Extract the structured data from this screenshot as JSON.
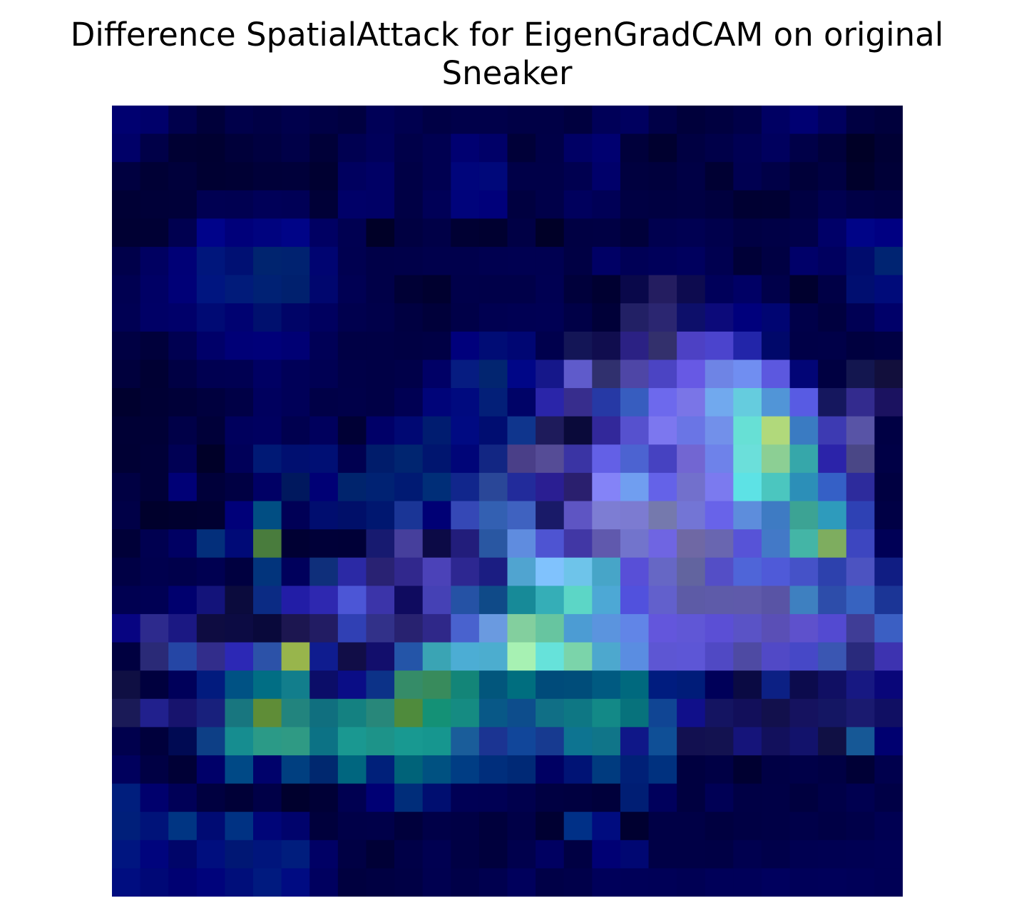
{
  "chart_data": {
    "type": "heatmap",
    "title": "Difference SpatialAttack for EigenGradCAM on original",
    "subtitle": "Sneaker",
    "xlabel": "",
    "ylabel": "",
    "axes_visible": false,
    "grid": false,
    "legend": "none",
    "rows": 28,
    "cols": 28,
    "cells": [
      [
        "#000070",
        "#00006a",
        "#00004c",
        "#00003a",
        "#00004a",
        "#000045",
        "#00004c",
        "#000045",
        "#000040",
        "#000057",
        "#00004f",
        "#000045",
        "#00004a",
        "#00004a",
        "#000046",
        "#000046",
        "#00003f",
        "#000058",
        "#00005f",
        "#000047",
        "#00003b",
        "#000040",
        "#000048",
        "#000063",
        "#000072",
        "#00005e",
        "#000042",
        "#00003c"
      ],
      [
        "#000068",
        "#000048",
        "#000033",
        "#000031",
        "#00003a",
        "#000040",
        "#000048",
        "#000038",
        "#000051",
        "#00005a",
        "#000049",
        "#000051",
        "#000071",
        "#000068",
        "#000038",
        "#000047",
        "#000065",
        "#000070",
        "#00003b",
        "#00002f",
        "#000042",
        "#000049",
        "#000053",
        "#00005e",
        "#000048",
        "#00003b",
        "#000026",
        "#000034"
      ],
      [
        "#000040",
        "#000035",
        "#00003b",
        "#000032",
        "#000034",
        "#000039",
        "#00003a",
        "#000031",
        "#00005f",
        "#000065",
        "#000046",
        "#000051",
        "#00057b",
        "#00087a",
        "#000048",
        "#000048",
        "#000050",
        "#00006a",
        "#00003f",
        "#00003d",
        "#000045",
        "#000033",
        "#000051",
        "#000047",
        "#000039",
        "#000042",
        "#00002b",
        "#000037"
      ],
      [
        "#000035",
        "#000038",
        "#000039",
        "#000052",
        "#000051",
        "#000058",
        "#000056",
        "#000037",
        "#000068",
        "#000066",
        "#000045",
        "#000057",
        "#00037b",
        "#00007a",
        "#000040",
        "#000049",
        "#00005d",
        "#000056",
        "#000043",
        "#000041",
        "#000043",
        "#00003e",
        "#000032",
        "#000033",
        "#000042",
        "#000050",
        "#000046",
        "#000043"
      ],
      [
        "#000033",
        "#000034",
        "#000050",
        "#00038a",
        "#00007a",
        "#00037f",
        "#000487",
        "#000063",
        "#000051",
        "#000027",
        "#000041",
        "#000047",
        "#000033",
        "#000030",
        "#000045",
        "#000027",
        "#000043",
        "#000044",
        "#00003a",
        "#00004f",
        "#000052",
        "#00004c",
        "#000043",
        "#000046",
        "#000049",
        "#000068",
        "#000487",
        "#000082"
      ],
      [
        "#00004a",
        "#000061",
        "#000076",
        "#00167c",
        "#001073",
        "#00246f",
        "#002270",
        "#000471",
        "#000050",
        "#000048",
        "#000049",
        "#00004c",
        "#00004c",
        "#000050",
        "#000051",
        "#000051",
        "#000044",
        "#000065",
        "#000056",
        "#00005a",
        "#00005e",
        "#000050",
        "#000037",
        "#000043",
        "#000069",
        "#00005f",
        "#000c6d",
        "#002472"
      ],
      [
        "#000051",
        "#000065",
        "#000077",
        "#001580",
        "#011b7a",
        "#002174",
        "#00206e",
        "#00066e",
        "#000053",
        "#000048",
        "#000035",
        "#00002f",
        "#00004a",
        "#000049",
        "#000049",
        "#000052",
        "#00003b",
        "#000031",
        "#09084a",
        "#241d60",
        "#0d0b4f",
        "#00005a",
        "#000065",
        "#00004a",
        "#00002e",
        "#000046",
        "#000e70",
        "#000b7a"
      ],
      [
        "#000053",
        "#000066",
        "#00006a",
        "#000a74",
        "#000271",
        "#00106e",
        "#000467",
        "#00005f",
        "#00004e",
        "#00004a",
        "#000041",
        "#00003a",
        "#000048",
        "#000051",
        "#000053",
        "#000054",
        "#000047",
        "#000038",
        "#222065",
        "#2b2671",
        "#0d0f6a",
        "#0c0a7a",
        "#00007c",
        "#000572",
        "#000049",
        "#00003f",
        "#000054",
        "#000069"
      ],
      [
        "#000043",
        "#00003b",
        "#000051",
        "#000069",
        "#000077",
        "#000079",
        "#000074",
        "#000056",
        "#000045",
        "#000045",
        "#000043",
        "#000045",
        "#00007c",
        "#000c75",
        "#000673",
        "#00004d",
        "#131556",
        "#100d4e",
        "#2b2184",
        "#33306c",
        "#4d41c4",
        "#4b44cd",
        "#2225a9",
        "#00086a",
        "#000047",
        "#000048",
        "#00003f",
        "#000043"
      ],
      [
        "#00003d",
        "#000033",
        "#000044",
        "#000051",
        "#000052",
        "#000063",
        "#000058",
        "#000053",
        "#000048",
        "#000046",
        "#000049",
        "#000066",
        "#061c81",
        "#022570",
        "#000687",
        "#15178a",
        "#5f5bcb",
        "#30306e",
        "#4e46a6",
        "#4b44c3",
        "#6759e4",
        "#6e84e5",
        "#708ef1",
        "#5c58df",
        "#020576",
        "#000041",
        "#13164f",
        "#120f3c"
      ],
      [
        "#00002e",
        "#000034",
        "#000038",
        "#00003e",
        "#000046",
        "#00005e",
        "#000058",
        "#000047",
        "#000049",
        "#000046",
        "#000053",
        "#000479",
        "#000a7f",
        "#031f78",
        "#000367",
        "#2a25a9",
        "#372d8d",
        "#2639a5",
        "#375dbf",
        "#6d69ed",
        "#7a75e7",
        "#71a9ee",
        "#65ccde",
        "#5195d7",
        "#585be3",
        "#15175e",
        "#332b8e",
        "#1b1260"
      ],
      [
        "#000035",
        "#000036",
        "#000048",
        "#000039",
        "#00005d",
        "#000060",
        "#00004f",
        "#00005d",
        "#000035",
        "#000068",
        "#000873",
        "#001c70",
        "#000a82",
        "#000d71",
        "#0f358d",
        "#1e1b5b",
        "#0a0a3a",
        "#32289a",
        "#5651ce",
        "#7c77ef",
        "#6a75e5",
        "#7290ea",
        "#67e0d5",
        "#b1d97b",
        "#3a7bc2",
        "#3d3ab2",
        "#5854a6",
        "#000044"
      ],
      [
        "#000034",
        "#000038",
        "#000054",
        "#000028",
        "#000059",
        "#001975",
        "#000f70",
        "#000f74",
        "#000050",
        "#001c6b",
        "#002570",
        "#00156f",
        "#000578",
        "#122683",
        "#4a3f88",
        "#554c96",
        "#3a34a4",
        "#6360e6",
        "#4c63d1",
        "#4642c1",
        "#7266d2",
        "#6e82ea",
        "#6bdfda",
        "#8ccf94",
        "#36a7aa",
        "#2b23a9",
        "#4a4786",
        "#000046"
      ],
      [
        "#000043",
        "#000038",
        "#000076",
        "#00003a",
        "#000043",
        "#000065",
        "#00185e",
        "#000075",
        "#00246d",
        "#002273",
        "#001a73",
        "#002e78",
        "#11268c",
        "#2a4798",
        "#222b9b",
        "#2a1e92",
        "#2a1f6e",
        "#8483f7",
        "#709ef0",
        "#6462e8",
        "#7270cc",
        "#7b7aef",
        "#5de2e5",
        "#4bc6bf",
        "#2c8fb8",
        "#3560c6",
        "#2d2b9c",
        "#000041"
      ],
      [
        "#000047",
        "#00002c",
        "#00002f",
        "#000031",
        "#000079",
        "#014e83",
        "#000056",
        "#000d6f",
        "#000f69",
        "#001770",
        "#1a3596",
        "#000075",
        "#3548b6",
        "#3360b2",
        "#3f62c0",
        "#191a68",
        "#5e55c3",
        "#7d7dd3",
        "#7c7bd1",
        "#7579ad",
        "#7375d5",
        "#6863e9",
        "#5d8ddc",
        "#3e7bc3",
        "#3ca394",
        "#2e9bbc",
        "#2e41b4",
        "#000045"
      ],
      [
        "#000038",
        "#000050",
        "#000063",
        "#032f7b",
        "#000a77",
        "#497c3d",
        "#000033",
        "#000038",
        "#000037",
        "#171a70",
        "#463f9c",
        "#0c0a46",
        "#221d7b",
        "#2957a2",
        "#5f8cdf",
        "#4e54d2",
        "#4137a5",
        "#6059ad",
        "#7274cc",
        "#6f65e2",
        "#6f68a4",
        "#6966b0",
        "#5753d7",
        "#4379c7",
        "#44b5a6",
        "#7ead5f",
        "#3d46c0",
        "#000056"
      ],
      [
        "#000045",
        "#00004e",
        "#00004b",
        "#000051",
        "#000040",
        "#02347c",
        "#00005c",
        "#0f2f7b",
        "#2b29a5",
        "#292273",
        "#31288d",
        "#4b42b8",
        "#2d2791",
        "#1b1d82",
        "#50a4d0",
        "#80c2fd",
        "#6ec4ea",
        "#47a5c8",
        "#584fd7",
        "#6667c5",
        "#62649f",
        "#544ec6",
        "#4f65d8",
        "#4f5ad8",
        "#4552c8",
        "#2d41ad",
        "#4c53c1",
        "#101d83"
      ],
      [
        "#000051",
        "#000054",
        "#00006e",
        "#13137a",
        "#0b0b3d",
        "#0b2b84",
        "#221da6",
        "#2e28b0",
        "#4c56d6",
        "#3b34a9",
        "#0f0b5f",
        "#4541b5",
        "#2552a5",
        "#0f4a88",
        "#178a98",
        "#35aeb7",
        "#5cd6c6",
        "#4da8d5",
        "#5151dd",
        "#6260cc",
        "#5d5ba6",
        "#5e5ba9",
        "#5f5aaa",
        "#5954a5",
        "#3e80c0",
        "#2d4daa",
        "#3763c0",
        "#1b3596"
      ],
      [
        "#070481",
        "#2d2a8d",
        "#1b1883",
        "#0e0c41",
        "#0c0b43",
        "#09093b",
        "#1c1650",
        "#221c63",
        "#3040b4",
        "#323189",
        "#282270",
        "#2f2889",
        "#4962ce",
        "#6a9ae0",
        "#83cf9e",
        "#67c5a0",
        "#4c9cd3",
        "#5b94de",
        "#6185e7",
        "#6356dc",
        "#6057d6",
        "#5b4fd5",
        "#5a53c6",
        "#5a4fb6",
        "#5e51cc",
        "#534ad1",
        "#3f3d96",
        "#3b5fc3"
      ],
      [
        "#000040",
        "#2a2a77",
        "#2546a5",
        "#322d8b",
        "#2c28b5",
        "#2c52a8",
        "#98b54c",
        "#0f1c8f",
        "#110d47",
        "#120e6c",
        "#2455a8",
        "#3aa4b4",
        "#4cadd4",
        "#4cadcf",
        "#a7f1b3",
        "#66e2da",
        "#7bd4aa",
        "#4da8ce",
        "#5a8de1",
        "#5d56d3",
        "#5d56d6",
        "#5049c4",
        "#4e4aa3",
        "#5149c6",
        "#4648c7",
        "#3a56b2",
        "#292a7c",
        "#3d33b0"
      ],
      [
        "#0f0f43",
        "#00003e",
        "#00005a",
        "#021b7e",
        "#005284",
        "#016e84",
        "#127e8c",
        "#0b0d68",
        "#0a0d86",
        "#0c3288",
        "#358c68",
        "#388b5c",
        "#138578",
        "#02567c",
        "#006e7f",
        "#004b7a",
        "#004d7a",
        "#005a81",
        "#00697e",
        "#001c7f",
        "#001c79",
        "#000059",
        "#0a0a43",
        "#0c2084",
        "#0c0b4d",
        "#100f63",
        "#171882",
        "#090679"
      ],
      [
        "#1a1a57",
        "#21208d",
        "#17136d",
        "#18207c",
        "#18767f",
        "#5f8d37",
        "#22847e",
        "#106f7f",
        "#148181",
        "#28877a",
        "#4f8b3c",
        "#149176",
        "#158b82",
        "#085887",
        "#0d4d8c",
        "#106f86",
        "#0e7784",
        "#138987",
        "#07727c",
        "#104594",
        "#100f8a",
        "#141461",
        "#120f5a",
        "#12104c",
        "#15125f",
        "#141663",
        "#1a1a6f",
        "#100f63"
      ],
      [
        "#00004d",
        "#00003c",
        "#000a53",
        "#0d3f86",
        "#168d90",
        "#2b9a87",
        "#2f9a84",
        "#0c7285",
        "#1a9891",
        "#1d9389",
        "#189991",
        "#16968f",
        "#1a5d9a",
        "#1b3492",
        "#11469a",
        "#173a90",
        "#0d7491",
        "#107589",
        "#0f1788",
        "#0f4f96",
        "#121050",
        "#131250",
        "#15147a",
        "#12105c",
        "#12126b",
        "#101044",
        "#165896",
        "#000070"
      ],
      [
        "#00005d",
        "#000044",
        "#000036",
        "#000069",
        "#004986",
        "#00026b",
        "#003f80",
        "#00286f",
        "#00667f",
        "#00207a",
        "#006379",
        "#005181",
        "#003d84",
        "#002e7c",
        "#002976",
        "#000063",
        "#001375",
        "#003b7f",
        "#002077",
        "#00317f",
        "#000040",
        "#000045",
        "#000031",
        "#000045",
        "#000048",
        "#000044",
        "#000036",
        "#00004d"
      ],
      [
        "#001e7d",
        "#00006d",
        "#000057",
        "#000040",
        "#000037",
        "#000047",
        "#00002d",
        "#000036",
        "#000051",
        "#000074",
        "#002d7a",
        "#000e70",
        "#000055",
        "#000054",
        "#00004d",
        "#000042",
        "#000040",
        "#00003b",
        "#001e74",
        "#00005c",
        "#000040",
        "#000055",
        "#000045",
        "#000046",
        "#00003f",
        "#000048",
        "#000050",
        "#000046"
      ],
      [
        "#001f7a",
        "#001379",
        "#003583",
        "#000b73",
        "#003283",
        "#000578",
        "#00036c",
        "#00003c",
        "#000048",
        "#000049",
        "#00003c",
        "#000048",
        "#000045",
        "#00003c",
        "#000047",
        "#000032",
        "#003087",
        "#000c7f",
        "#000030",
        "#000046",
        "#000046",
        "#000040",
        "#000044",
        "#000046",
        "#000049",
        "#000045",
        "#000049",
        "#000052"
      ],
      [
        "#001580",
        "#00047d",
        "#000569",
        "#000e7e",
        "#001774",
        "#00157c",
        "#001d7d",
        "#000065",
        "#000044",
        "#000036",
        "#000047",
        "#000051",
        "#000044",
        "#00003d",
        "#00004d",
        "#000061",
        "#000043",
        "#000074",
        "#000772",
        "#000046",
        "#000046",
        "#000045",
        "#00004f",
        "#00004a",
        "#000051",
        "#000052",
        "#000053",
        "#000055"
      ],
      [
        "#000d80",
        "#000876",
        "#000172",
        "#00037b",
        "#000e7a",
        "#001a7f",
        "#000b82",
        "#00005f",
        "#00003f",
        "#000042",
        "#000045",
        "#000050",
        "#000048",
        "#00004f",
        "#00005c",
        "#000047",
        "#00004a",
        "#00005a",
        "#000058",
        "#000057",
        "#000054",
        "#000059",
        "#000059",
        "#00005e",
        "#000059",
        "#00005a",
        "#000058",
        "#000055"
      ]
    ]
  }
}
